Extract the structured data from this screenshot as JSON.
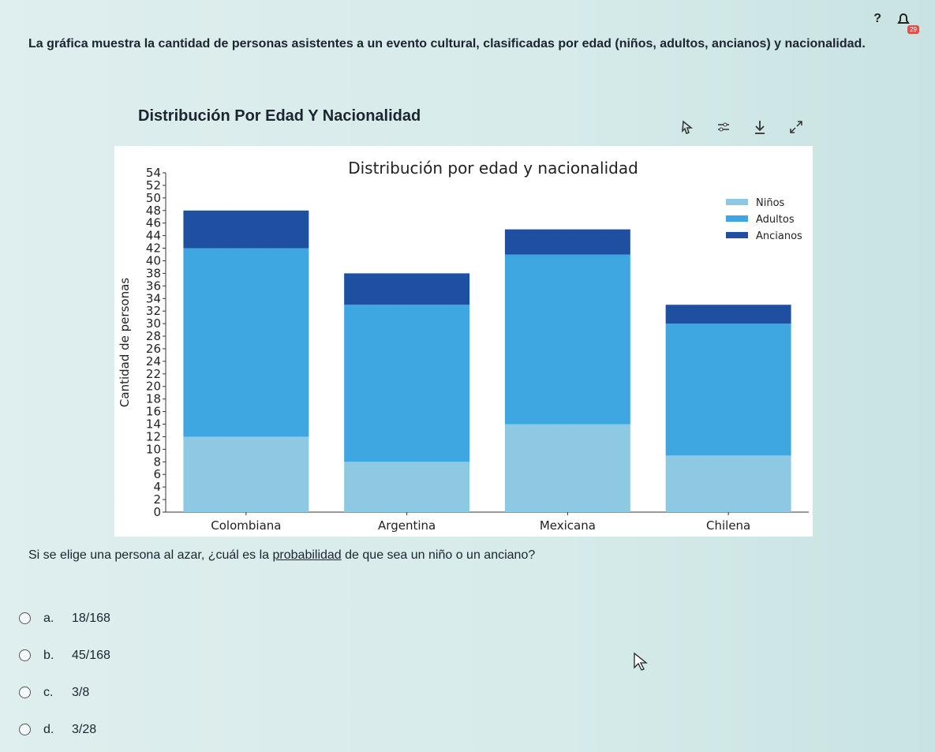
{
  "top": {
    "help": "?",
    "badge": "29"
  },
  "intro": "La gráfica muestra la cantidad de personas asistentes a un evento cultural, clasificadas por edad (niños, adultos, ancianos) y nacionalidad.",
  "card_title": "Distribución Por Edad Y Nacionalidad",
  "question": {
    "before": "Si se elige una persona al azar, ¿cuál es la ",
    "underlined": "probabilidad",
    "after": " de que sea un niño o un anciano?"
  },
  "options": [
    {
      "letter": "a.",
      "text": "18/168"
    },
    {
      "letter": "b.",
      "text": "45/168"
    },
    {
      "letter": "c.",
      "text": "3/8"
    },
    {
      "letter": "d.",
      "text": "3/28"
    }
  ],
  "chart_data": {
    "type": "bar",
    "stacked": true,
    "title": "Distribución por edad y nacionalidad",
    "xlabel": "",
    "ylabel": "Cantidad de personas",
    "categories": [
      "Colombiana",
      "Argentina",
      "Mexicana",
      "Chilena"
    ],
    "series": [
      {
        "name": "Niños",
        "values": [
          12,
          8,
          14,
          9
        ],
        "color": "#8ec9e3"
      },
      {
        "name": "Adultos",
        "values": [
          30,
          25,
          27,
          21
        ],
        "color": "#3ea6e0"
      },
      {
        "name": "Ancianos",
        "values": [
          6,
          5,
          4,
          3
        ],
        "color": "#1f4fa0"
      }
    ],
    "ylim": [
      0,
      54
    ],
    "yticks": [
      0,
      2,
      4,
      6,
      8,
      10,
      12,
      14,
      16,
      18,
      20,
      22,
      24,
      26,
      28,
      30,
      32,
      34,
      36,
      38,
      40,
      42,
      44,
      46,
      48,
      50,
      52,
      54
    ],
    "legend": "top-right",
    "grid": false
  }
}
